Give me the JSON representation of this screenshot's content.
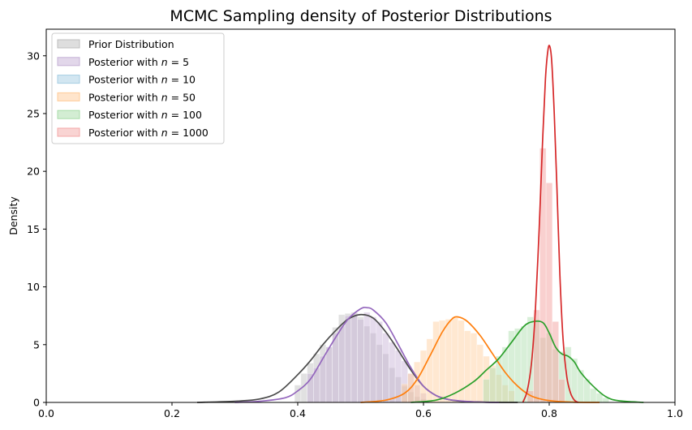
{
  "chart_data": {
    "type": "area",
    "title": "MCMC Sampling density of Posterior Distributions",
    "xlabel": "",
    "ylabel": "Density",
    "xlim": [
      0.0,
      1.0
    ],
    "ylim": [
      0,
      32.3
    ],
    "xticks": [
      "0.0",
      "0.2",
      "0.4",
      "0.6",
      "0.8",
      "1.0"
    ],
    "yticks": [
      "0",
      "5",
      "10",
      "15",
      "20",
      "25",
      "30"
    ],
    "grid": false,
    "legend_position": "top-left",
    "series": [
      {
        "name": "Prior Distribution",
        "legend_label": "Prior Distribution",
        "color": "#4a4a4a",
        "fill": "#bdbdbd",
        "kde_x": [
          0.24,
          0.3,
          0.34,
          0.37,
          0.4,
          0.42,
          0.44,
          0.46,
          0.48,
          0.5,
          0.52,
          0.54,
          0.56,
          0.58,
          0.6,
          0.62,
          0.64,
          0.66,
          0.7,
          0.75
        ],
        "kde_y": [
          0.0,
          0.1,
          0.3,
          0.9,
          2.4,
          3.6,
          5.0,
          6.2,
          7.2,
          7.6,
          7.3,
          6.1,
          4.5,
          2.8,
          1.4,
          0.6,
          0.25,
          0.1,
          0.02,
          0.0
        ],
        "hist_x": [
          0.4,
          0.41,
          0.42,
          0.43,
          0.44,
          0.45,
          0.46,
          0.47,
          0.48,
          0.49,
          0.5,
          0.51,
          0.52,
          0.53,
          0.54,
          0.55,
          0.56,
          0.57,
          0.58,
          0.59,
          0.6,
          0.61
        ],
        "hist_y": [
          1.5,
          2.5,
          3.4,
          4.2,
          5.0,
          4.8,
          6.5,
          7.6,
          7.7,
          7.8,
          7.4,
          6.6,
          6.0,
          5.0,
          4.2,
          3.0,
          2.2,
          1.4,
          0.9,
          0.5,
          0.3,
          0.2
        ]
      },
      {
        "name": "Posterior with n = 5",
        "legend_label": "Posterior with $n = 5$",
        "color": "#9467bd",
        "fill": "#c5b0d5",
        "kde_x": [
          0.3,
          0.34,
          0.38,
          0.4,
          0.42,
          0.44,
          0.46,
          0.48,
          0.5,
          0.51,
          0.52,
          0.54,
          0.56,
          0.58,
          0.6,
          0.62,
          0.64,
          0.68,
          0.72
        ],
        "kde_y": [
          0.0,
          0.1,
          0.4,
          1.0,
          2.0,
          3.8,
          5.6,
          7.2,
          8.1,
          8.2,
          8.0,
          6.9,
          5.0,
          3.0,
          1.4,
          0.6,
          0.25,
          0.05,
          0.0
        ],
        "hist_x": [
          0.42,
          0.43,
          0.44,
          0.45,
          0.46,
          0.47,
          0.48,
          0.49,
          0.5,
          0.51,
          0.52,
          0.53,
          0.54,
          0.55,
          0.56,
          0.57,
          0.58,
          0.59,
          0.6
        ],
        "hist_y": [
          2.5,
          3.0,
          4.0,
          4.8,
          6.0,
          6.6,
          7.5,
          7.7,
          7.2,
          7.8,
          7.4,
          7.0,
          6.0,
          5.2,
          4.5,
          3.6,
          2.5,
          1.5,
          0.8
        ]
      },
      {
        "name": "Posterior with n = 10",
        "legend_label": "Posterior with $n = 10$",
        "color": "#1f77b4",
        "fill": "#a6cee3",
        "kde_x": [],
        "kde_y": [],
        "hist_x": [],
        "hist_y": []
      },
      {
        "name": "Posterior with n = 50",
        "legend_label": "Posterior with $n = 50$",
        "color": "#ff7f0e",
        "fill": "#ffcc99",
        "kde_x": [
          0.5,
          0.54,
          0.57,
          0.59,
          0.61,
          0.63,
          0.645,
          0.655,
          0.67,
          0.69,
          0.71,
          0.73,
          0.75,
          0.77,
          0.79,
          0.81,
          0.84,
          0.88
        ],
        "kde_y": [
          0.0,
          0.2,
          0.8,
          2.0,
          4.0,
          6.1,
          7.2,
          7.4,
          7.0,
          5.8,
          4.2,
          2.6,
          1.4,
          0.6,
          0.25,
          0.1,
          0.02,
          0.0
        ],
        "hist_x": [
          0.57,
          0.58,
          0.59,
          0.6,
          0.61,
          0.62,
          0.63,
          0.64,
          0.65,
          0.66,
          0.67,
          0.68,
          0.69,
          0.7,
          0.71,
          0.72,
          0.73,
          0.74
        ],
        "hist_y": [
          1.6,
          2.5,
          3.5,
          4.5,
          5.5,
          7.0,
          7.1,
          7.2,
          7.4,
          7.1,
          6.2,
          6.0,
          5.0,
          4.0,
          3.2,
          2.4,
          1.5,
          1.0
        ]
      },
      {
        "name": "Posterior with n = 100",
        "legend_label": "Posterior with $n = 100$",
        "color": "#2ca02c",
        "fill": "#a8dca8",
        "kde_x": [
          0.58,
          0.62,
          0.65,
          0.68,
          0.7,
          0.72,
          0.74,
          0.76,
          0.775,
          0.79,
          0.8,
          0.81,
          0.82,
          0.83,
          0.84,
          0.85,
          0.87,
          0.89,
          0.91,
          0.95
        ],
        "kde_y": [
          0.0,
          0.2,
          0.8,
          1.8,
          2.8,
          3.8,
          5.2,
          6.6,
          7.0,
          6.9,
          6.0,
          4.8,
          4.2,
          4.0,
          3.5,
          2.6,
          1.4,
          0.5,
          0.15,
          0.0
        ],
        "hist_x": [
          0.7,
          0.71,
          0.72,
          0.73,
          0.74,
          0.75,
          0.76,
          0.77,
          0.78,
          0.79,
          0.8,
          0.81,
          0.82,
          0.83,
          0.84,
          0.85,
          0.86,
          0.87,
          0.88,
          0.89
        ],
        "hist_y": [
          2.0,
          3.0,
          4.0,
          4.8,
          6.2,
          6.4,
          6.6,
          7.4,
          7.2,
          5.6,
          6.0,
          4.6,
          4.4,
          4.8,
          3.8,
          2.8,
          2.0,
          1.2,
          0.8,
          0.4
        ]
      },
      {
        "name": "Posterior with n = 1000",
        "legend_label": "Posterior with $n = 1000$",
        "color": "#d62728",
        "fill": "#f4a9a8",
        "kde_x": [
          0.758,
          0.765,
          0.772,
          0.778,
          0.784,
          0.789,
          0.794,
          0.798,
          0.801,
          0.804,
          0.808,
          0.812,
          0.817,
          0.822,
          0.828,
          0.834,
          0.84,
          0.846
        ],
        "kde_y": [
          0.0,
          1.0,
          3.5,
          8.0,
          15.0,
          22.0,
          28.0,
          30.5,
          30.8,
          29.5,
          25.0,
          19.0,
          11.0,
          5.5,
          2.2,
          0.8,
          0.2,
          0.0
        ],
        "hist_x": [
          0.77,
          0.78,
          0.79,
          0.8,
          0.81,
          0.82
        ],
        "hist_y": [
          1.0,
          8.0,
          22.0,
          19.0,
          7.0,
          2.0
        ]
      }
    ]
  }
}
